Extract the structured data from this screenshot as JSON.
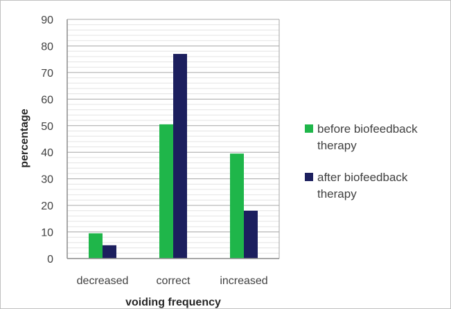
{
  "chart_data": {
    "type": "bar",
    "title": "",
    "xlabel": "voiding frequency",
    "ylabel": "percentage",
    "categories": [
      "decreased",
      "correct",
      "increased"
    ],
    "ylim": [
      0,
      90
    ],
    "ytick_step": 10,
    "grid": true,
    "legend_position": "right",
    "series": [
      {
        "name": "before biofeedback therapy",
        "name_lines": [
          "before biofeedback",
          "therapy"
        ],
        "color": "#1fb64a",
        "values": [
          9.5,
          50.5,
          39.5
        ]
      },
      {
        "name": "after biofeedback therapy",
        "name_lines": [
          "after biofeedback",
          "therapy"
        ],
        "color": "#1c1f5e",
        "values": [
          5,
          77,
          18
        ]
      }
    ]
  }
}
